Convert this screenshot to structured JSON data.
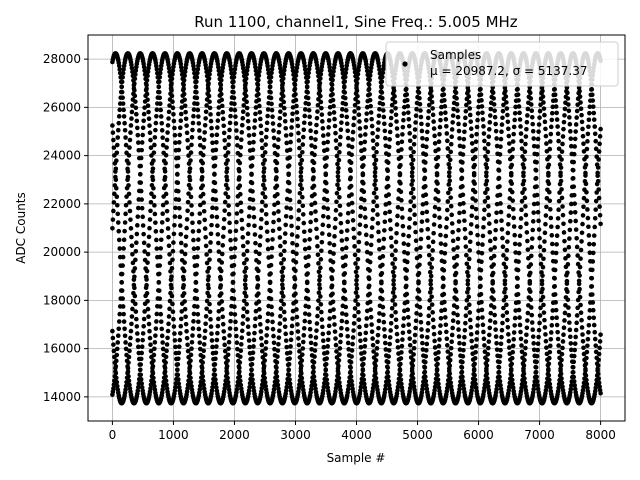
{
  "chart_data": {
    "type": "scatter",
    "title": "Run 1100, channel1, Sine Freq.: 5.005 MHz",
    "xlabel": "Sample #",
    "ylabel": "ADC Counts",
    "xlim": [
      -400,
      8400
    ],
    "ylim": [
      13000,
      29000
    ],
    "xticks": [
      0,
      1000,
      2000,
      3000,
      4000,
      5000,
      6000,
      7000,
      8000
    ],
    "yticks": [
      14000,
      16000,
      18000,
      20000,
      22000,
      24000,
      26000,
      28000
    ],
    "grid": true,
    "legend_position": "top-right",
    "series": [
      {
        "name": "Samples",
        "color": "#000000",
        "marker": "dot",
        "signal": {
          "mean": 20987.2,
          "amplitude": 7250,
          "cycles_per_sample": 0.000987,
          "phase_branches": [
            0,
            1.2566,
            2.5133,
            3.7699,
            5.0265
          ]
        },
        "x_range": [
          0,
          8000
        ]
      }
    ],
    "legend": {
      "label": "Samples",
      "stats": "μ = 20987.2, σ = 5137.37"
    }
  }
}
